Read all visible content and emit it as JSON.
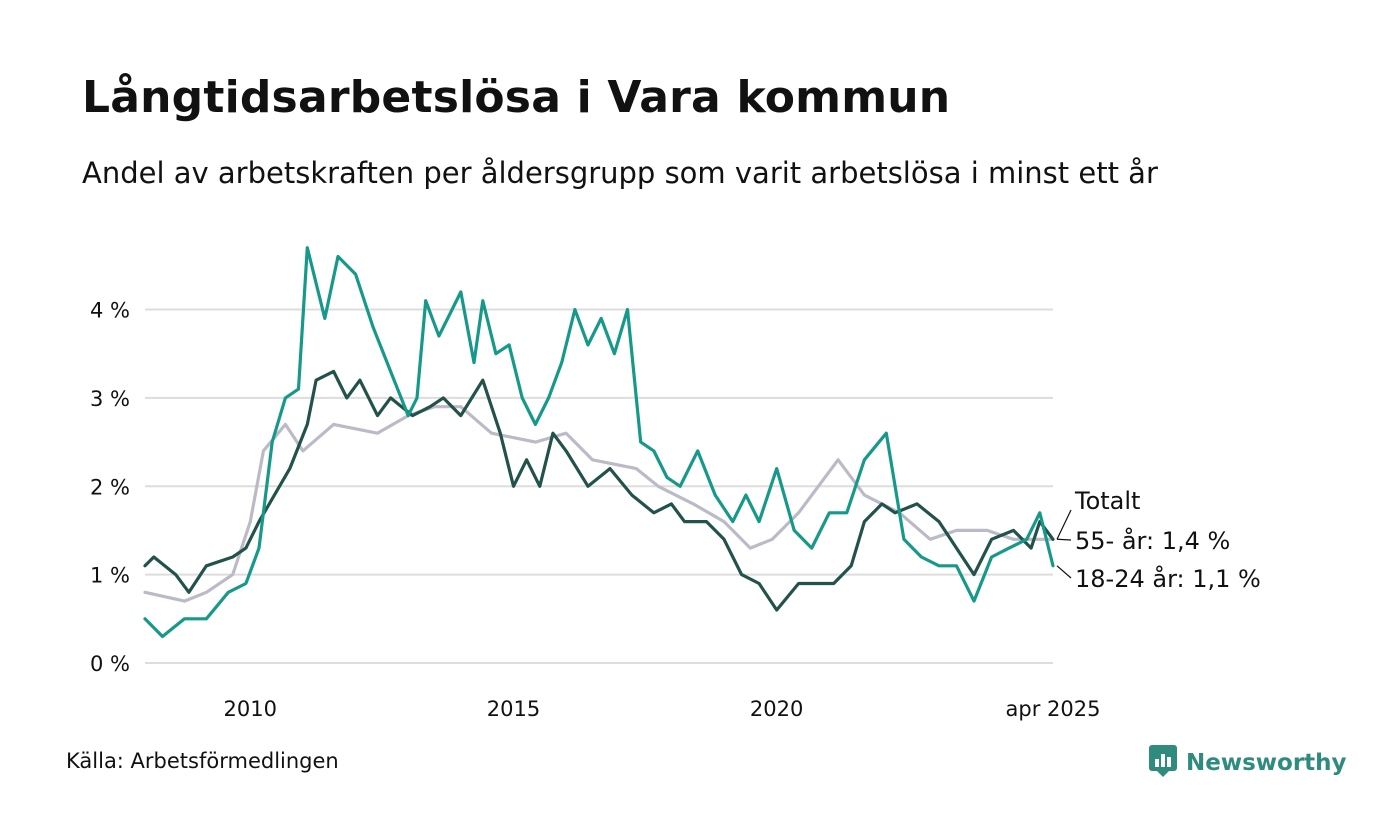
{
  "header": {
    "title": "Långtidsarbetslösa i Vara kommun",
    "subtitle": "Andel av arbetskraften per åldersgrupp som varit arbetslösa i minst ett år"
  },
  "footer": {
    "source": "Källa: Arbetsförmedlingen",
    "brand": "Newsworthy",
    "brand_icon": "newsworthy-chart-icon"
  },
  "chart_data": {
    "type": "line",
    "x_start": "2008-01",
    "x_step": "month",
    "x_end": "2025-04",
    "xticks": [
      {
        "date": "2010-01",
        "label": "2010"
      },
      {
        "date": "2015-01",
        "label": "2015"
      },
      {
        "date": "2020-01",
        "label": "2020"
      },
      {
        "date": "2025-04",
        "label": "apr 2025"
      }
    ],
    "ylim": [
      0,
      4.9
    ],
    "yticks": [
      {
        "value": 0,
        "label": "0 %"
      },
      {
        "value": 1,
        "label": "1 %"
      },
      {
        "value": 2,
        "label": "2 %"
      },
      {
        "value": 3,
        "label": "3 %"
      },
      {
        "value": 4,
        "label": "4 %"
      }
    ],
    "grid": true,
    "colors": {
      "total": "#bdbac8",
      "age55": "#22524a",
      "age1824": "#17998a",
      "grid": "#dddddd"
    },
    "series": [
      {
        "name": "Totalt",
        "key": "total",
        "end_label": "Totalt",
        "anchors": [
          [
            "2008-01",
            0.8
          ],
          [
            "2008-10",
            0.7
          ],
          [
            "2009-03",
            0.8
          ],
          [
            "2009-09",
            1.0
          ],
          [
            "2010-01",
            1.6
          ],
          [
            "2010-04",
            2.4
          ],
          [
            "2010-09",
            2.7
          ],
          [
            "2011-01",
            2.4
          ],
          [
            "2011-08",
            2.7
          ],
          [
            "2012-06",
            2.6
          ],
          [
            "2013-01",
            2.8
          ],
          [
            "2013-07",
            2.9
          ],
          [
            "2014-01",
            2.9
          ],
          [
            "2014-08",
            2.6
          ],
          [
            "2015-06",
            2.5
          ],
          [
            "2016-01",
            2.6
          ],
          [
            "2016-07",
            2.3
          ],
          [
            "2017-05",
            2.2
          ],
          [
            "2017-10",
            2.0
          ],
          [
            "2018-06",
            1.8
          ],
          [
            "2019-01",
            1.6
          ],
          [
            "2019-07",
            1.3
          ],
          [
            "2019-12",
            1.4
          ],
          [
            "2020-06",
            1.7
          ],
          [
            "2021-03",
            2.3
          ],
          [
            "2021-09",
            1.9
          ],
          [
            "2022-05",
            1.7
          ],
          [
            "2022-12",
            1.4
          ],
          [
            "2023-06",
            1.5
          ],
          [
            "2024-01",
            1.5
          ],
          [
            "2024-07",
            1.4
          ],
          [
            "2025-04",
            1.4
          ]
        ]
      },
      {
        "name": "55- år",
        "key": "age55",
        "end_label": "55- år: 1,4 %",
        "anchors": [
          [
            "2008-01",
            1.1
          ],
          [
            "2008-03",
            1.2
          ],
          [
            "2008-08",
            1.0
          ],
          [
            "2008-11",
            0.8
          ],
          [
            "2009-03",
            1.1
          ],
          [
            "2009-09",
            1.2
          ],
          [
            "2009-12",
            1.3
          ],
          [
            "2010-03",
            1.6
          ],
          [
            "2010-10",
            2.2
          ],
          [
            "2011-02",
            2.7
          ],
          [
            "2011-04",
            3.2
          ],
          [
            "2011-08",
            3.3
          ],
          [
            "2011-11",
            3.0
          ],
          [
            "2012-02",
            3.2
          ],
          [
            "2012-06",
            2.8
          ],
          [
            "2012-09",
            3.0
          ],
          [
            "2013-02",
            2.8
          ],
          [
            "2013-06",
            2.9
          ],
          [
            "2013-09",
            3.0
          ],
          [
            "2014-01",
            2.8
          ],
          [
            "2014-06",
            3.2
          ],
          [
            "2014-10",
            2.6
          ],
          [
            "2015-01",
            2.0
          ],
          [
            "2015-04",
            2.3
          ],
          [
            "2015-07",
            2.0
          ],
          [
            "2015-10",
            2.6
          ],
          [
            "2016-01",
            2.4
          ],
          [
            "2016-06",
            2.0
          ],
          [
            "2016-11",
            2.2
          ],
          [
            "2017-04",
            1.9
          ],
          [
            "2017-09",
            1.7
          ],
          [
            "2018-01",
            1.8
          ],
          [
            "2018-04",
            1.6
          ],
          [
            "2018-09",
            1.6
          ],
          [
            "2019-01",
            1.4
          ],
          [
            "2019-05",
            1.0
          ],
          [
            "2019-09",
            0.9
          ],
          [
            "2020-01",
            0.6
          ],
          [
            "2020-06",
            0.9
          ],
          [
            "2021-02",
            0.9
          ],
          [
            "2021-06",
            1.1
          ],
          [
            "2021-09",
            1.6
          ],
          [
            "2022-01",
            1.8
          ],
          [
            "2022-04",
            1.7
          ],
          [
            "2022-09",
            1.8
          ],
          [
            "2023-02",
            1.6
          ],
          [
            "2023-06",
            1.3
          ],
          [
            "2023-10",
            1.0
          ],
          [
            "2024-02",
            1.4
          ],
          [
            "2024-07",
            1.5
          ],
          [
            "2024-11",
            1.3
          ],
          [
            "2025-01",
            1.6
          ],
          [
            "2025-04",
            1.4
          ]
        ]
      },
      {
        "name": "18-24 år",
        "key": "age1824",
        "end_label": "18-24 år: 1,1 %",
        "anchors": [
          [
            "2008-01",
            0.5
          ],
          [
            "2008-05",
            0.3
          ],
          [
            "2008-10",
            0.5
          ],
          [
            "2009-03",
            0.5
          ],
          [
            "2009-08",
            0.8
          ],
          [
            "2009-12",
            0.9
          ],
          [
            "2010-03",
            1.3
          ],
          [
            "2010-06",
            2.5
          ],
          [
            "2010-09",
            3.0
          ],
          [
            "2010-12",
            3.1
          ],
          [
            "2011-02",
            4.7
          ],
          [
            "2011-06",
            3.9
          ],
          [
            "2011-09",
            4.6
          ],
          [
            "2012-01",
            4.4
          ],
          [
            "2012-05",
            3.8
          ],
          [
            "2012-09",
            3.3
          ],
          [
            "2013-01",
            2.8
          ],
          [
            "2013-03",
            3.0
          ],
          [
            "2013-05",
            4.1
          ],
          [
            "2013-08",
            3.7
          ],
          [
            "2013-11",
            4.0
          ],
          [
            "2014-01",
            4.2
          ],
          [
            "2014-04",
            3.4
          ],
          [
            "2014-06",
            4.1
          ],
          [
            "2014-09",
            3.5
          ],
          [
            "2014-12",
            3.6
          ],
          [
            "2015-03",
            3.0
          ],
          [
            "2015-06",
            2.7
          ],
          [
            "2015-09",
            3.0
          ],
          [
            "2015-12",
            3.4
          ],
          [
            "2016-03",
            4.0
          ],
          [
            "2016-06",
            3.6
          ],
          [
            "2016-09",
            3.9
          ],
          [
            "2016-12",
            3.5
          ],
          [
            "2017-03",
            4.0
          ],
          [
            "2017-06",
            2.5
          ],
          [
            "2017-09",
            2.4
          ],
          [
            "2017-12",
            2.1
          ],
          [
            "2018-03",
            2.0
          ],
          [
            "2018-07",
            2.4
          ],
          [
            "2018-11",
            1.9
          ],
          [
            "2019-03",
            1.6
          ],
          [
            "2019-06",
            1.9
          ],
          [
            "2019-09",
            1.6
          ],
          [
            "2020-01",
            2.2
          ],
          [
            "2020-05",
            1.5
          ],
          [
            "2020-09",
            1.3
          ],
          [
            "2021-01",
            1.7
          ],
          [
            "2021-05",
            1.7
          ],
          [
            "2021-09",
            2.3
          ],
          [
            "2022-02",
            2.6
          ],
          [
            "2022-06",
            1.4
          ],
          [
            "2022-10",
            1.2
          ],
          [
            "2023-02",
            1.1
          ],
          [
            "2023-06",
            1.1
          ],
          [
            "2023-10",
            0.7
          ],
          [
            "2024-02",
            1.2
          ],
          [
            "2024-06",
            1.3
          ],
          [
            "2024-10",
            1.4
          ],
          [
            "2025-01",
            1.7
          ],
          [
            "2025-04",
            1.1
          ]
        ]
      }
    ]
  }
}
